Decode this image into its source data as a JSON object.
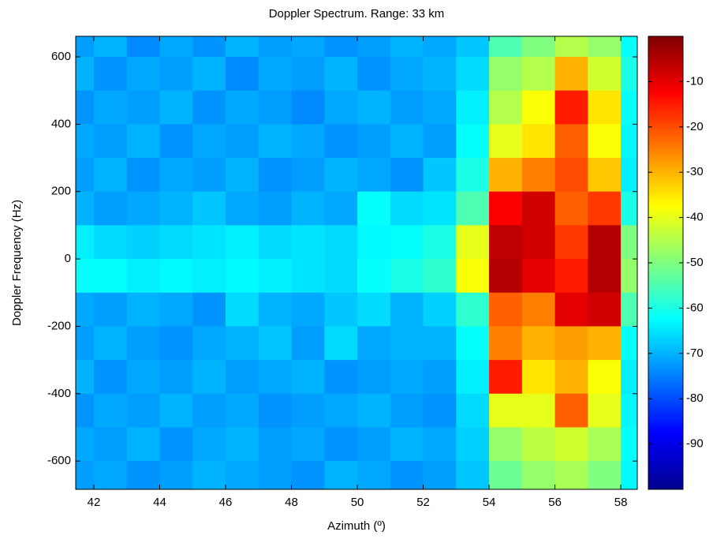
{
  "chart_data": {
    "type": "heatmap",
    "title": "Doppler Spectrum. Range: 33 km",
    "xlabel": "Azimuth (º)",
    "ylabel": "Doppler Frequency (Hz)",
    "x": [
      41.5,
      42.5,
      43.5,
      44.5,
      45.5,
      46.5,
      47.5,
      48.5,
      49.5,
      50.5,
      51.5,
      52.5,
      53.5,
      54.5,
      55.5,
      56.5,
      57.5,
      58.5
    ],
    "y": [
      650,
      550,
      450,
      350,
      250,
      150,
      50,
      -50,
      -150,
      -250,
      -350,
      -450,
      -550,
      -650
    ],
    "z": [
      [
        -72,
        -70,
        -74,
        -71,
        -73,
        -70,
        -72,
        -71,
        -73,
        -72,
        -70,
        -71,
        -68,
        -55,
        -50,
        -45,
        -48,
        -62
      ],
      [
        -70,
        -73,
        -71,
        -72,
        -70,
        -74,
        -71,
        -72,
        -70,
        -73,
        -71,
        -70,
        -66,
        -48,
        -45,
        -30,
        -42,
        -60
      ],
      [
        -73,
        -71,
        -72,
        -70,
        -73,
        -71,
        -72,
        -74,
        -71,
        -70,
        -72,
        -71,
        -64,
        -45,
        -38,
        -15,
        -35,
        -62
      ],
      [
        -71,
        -72,
        -70,
        -73,
        -71,
        -72,
        -70,
        -71,
        -73,
        -72,
        -70,
        -72,
        -62,
        -40,
        -35,
        -22,
        -38,
        -63
      ],
      [
        -72,
        -70,
        -73,
        -71,
        -72,
        -70,
        -73,
        -72,
        -70,
        -71,
        -73,
        -68,
        -60,
        -30,
        -25,
        -20,
        -32,
        -64
      ],
      [
        -70,
        -72,
        -71,
        -70,
        -68,
        -71,
        -72,
        -70,
        -71,
        -62,
        -66,
        -65,
        -55,
        -12,
        -8,
        -22,
        -18,
        -60
      ],
      [
        -64,
        -66,
        -67,
        -66,
        -65,
        -64,
        -66,
        -65,
        -66,
        -63,
        -62,
        -60,
        -40,
        -6,
        -8,
        -18,
        -5,
        -50
      ],
      [
        -62,
        -62,
        -64,
        -63,
        -64,
        -63,
        -64,
        -65,
        -66,
        -62,
        -60,
        -58,
        -38,
        -5,
        -10,
        -15,
        -5,
        -48
      ],
      [
        -71,
        -72,
        -70,
        -71,
        -73,
        -66,
        -70,
        -71,
        -68,
        -66,
        -70,
        -67,
        -58,
        -22,
        -25,
        -10,
        -8,
        -55
      ],
      [
        -72,
        -70,
        -72,
        -73,
        -71,
        -70,
        -68,
        -72,
        -66,
        -71,
        -70,
        -70,
        -62,
        -25,
        -30,
        -28,
        -30,
        -62
      ],
      [
        -70,
        -73,
        -71,
        -72,
        -70,
        -72,
        -71,
        -70,
        -73,
        -72,
        -71,
        -72,
        -64,
        -15,
        -35,
        -30,
        -38,
        -64
      ],
      [
        -73,
        -71,
        -72,
        -70,
        -72,
        -71,
        -73,
        -72,
        -71,
        -70,
        -72,
        -73,
        -66,
        -40,
        -40,
        -22,
        -40,
        -63
      ],
      [
        -71,
        -72,
        -70,
        -73,
        -71,
        -70,
        -72,
        -71,
        -73,
        -72,
        -70,
        -71,
        -67,
        -48,
        -44,
        -42,
        -46,
        -62
      ],
      [
        -72,
        -71,
        -73,
        -72,
        -70,
        -71,
        -72,
        -73,
        -70,
        -71,
        -73,
        -72,
        -68,
        -52,
        -48,
        -46,
        -50,
        -63
      ]
    ],
    "xlim": [
      41.45,
      58.5
    ],
    "xticks": [
      42,
      44,
      46,
      48,
      50,
      52,
      54,
      56,
      58
    ],
    "ylim": [
      -684,
      661
    ],
    "yticks": [
      -600,
      -400,
      -200,
      0,
      200,
      400,
      600
    ],
    "zlim": [
      -100,
      0
    ],
    "zticks": [
      -90,
      -80,
      -70,
      -60,
      -50,
      -40,
      -30,
      -20,
      -10
    ],
    "colormap": "jet"
  }
}
